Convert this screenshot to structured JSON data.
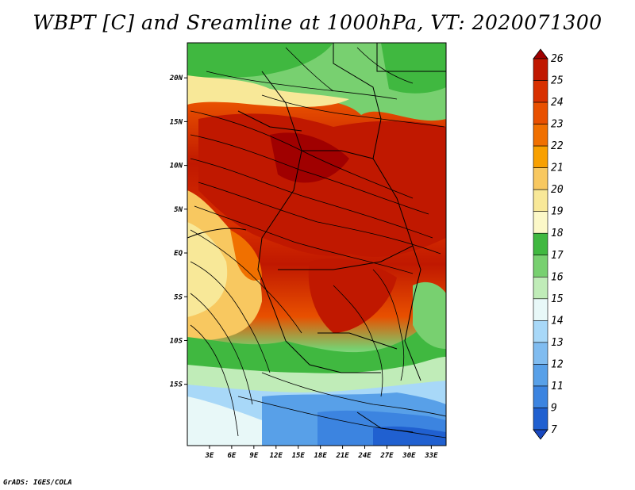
{
  "title": "WBPT [C] and Sreamline at 1000hPa, VT: 2020071300",
  "credit": "GrADS: IGES/COLA",
  "map": {
    "lat_range": [
      -22,
      24
    ],
    "lon_range": [
      0,
      35
    ],
    "lat_ticks": [
      "20N",
      "15N",
      "10N",
      "5N",
      "EQ",
      "5S",
      "10S",
      "15S"
    ],
    "lat_tick_values": [
      20,
      15,
      10,
      5,
      0,
      -5,
      -10,
      -15
    ],
    "lon_ticks": [
      "3E",
      "6E",
      "9E",
      "12E",
      "15E",
      "18E",
      "21E",
      "24E",
      "27E",
      "30E",
      "33E"
    ],
    "lon_tick_values": [
      3,
      6,
      9,
      12,
      15,
      18,
      21,
      24,
      27,
      30,
      33
    ],
    "field": "wet-bulb potential temperature",
    "overlay": "streamlines"
  },
  "colorbar": {
    "labels": [
      "26",
      "25",
      "24",
      "23",
      "22",
      "21",
      "20",
      "19",
      "18",
      "17",
      "16",
      "15",
      "14",
      "13",
      "12",
      "11",
      "9",
      "7"
    ],
    "colors": [
      "#a00000",
      "#c01800",
      "#d83000",
      "#e85000",
      "#f07000",
      "#f8a000",
      "#f8c860",
      "#f8e898",
      "#fcf8c8",
      "#40b840",
      "#78d070",
      "#c0ecb8",
      "#e8f8f8",
      "#a8d8f8",
      "#80bcf0",
      "#58a0e8",
      "#3c84e0",
      "#2060d0",
      "#1848c0"
    ],
    "extend": "both"
  }
}
